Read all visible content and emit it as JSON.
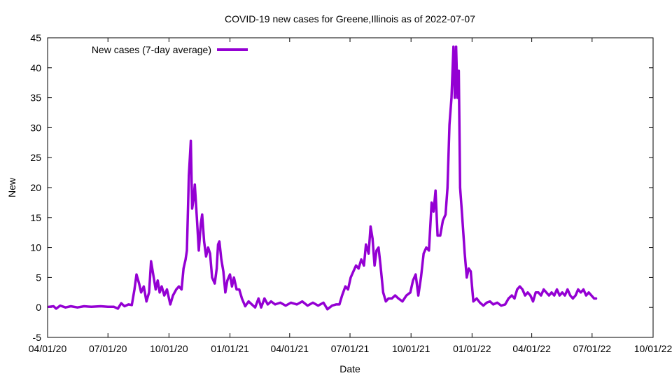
{
  "chart_data": {
    "type": "line",
    "title": "COVID-19 new cases for Greene,Illinois as of 2022-07-07",
    "xlabel": "Date",
    "ylabel": "New",
    "x_start": "2020-04-01",
    "x_end": "2022-10-01",
    "ylim": [
      -5,
      45
    ],
    "yticks": [
      -5,
      0,
      5,
      10,
      15,
      20,
      25,
      30,
      35,
      40,
      45
    ],
    "xticks": [
      {
        "date": "2020-04-01",
        "label": "04/01/20"
      },
      {
        "date": "2020-07-01",
        "label": "07/01/20"
      },
      {
        "date": "2020-10-01",
        "label": "10/01/20"
      },
      {
        "date": "2021-01-01",
        "label": "01/01/21"
      },
      {
        "date": "2021-04-01",
        "label": "04/01/21"
      },
      {
        "date": "2021-07-01",
        "label": "07/01/21"
      },
      {
        "date": "2021-10-01",
        "label": "10/01/21"
      },
      {
        "date": "2022-01-01",
        "label": "01/01/22"
      },
      {
        "date": "2022-04-01",
        "label": "04/01/22"
      },
      {
        "date": "2022-07-01",
        "label": "07/01/22"
      },
      {
        "date": "2022-10-01",
        "label": "10/01/22"
      }
    ],
    "grid": false,
    "legend_position": "top-left",
    "series": [
      {
        "name": "New cases (7-day average)",
        "color": "#9400d3",
        "points": [
          [
            "2020-04-03",
            0.1
          ],
          [
            "2020-04-10",
            0.2
          ],
          [
            "2020-04-14",
            -0.2
          ],
          [
            "2020-04-20",
            0.3
          ],
          [
            "2020-04-28",
            0.0
          ],
          [
            "2020-05-06",
            0.2
          ],
          [
            "2020-05-16",
            0.0
          ],
          [
            "2020-05-26",
            0.2
          ],
          [
            "2020-06-06",
            0.1
          ],
          [
            "2020-06-20",
            0.2
          ],
          [
            "2020-07-01",
            0.1
          ],
          [
            "2020-07-10",
            0.1
          ],
          [
            "2020-07-16",
            -0.2
          ],
          [
            "2020-07-21",
            0.7
          ],
          [
            "2020-07-26",
            0.2
          ],
          [
            "2020-08-01",
            0.5
          ],
          [
            "2020-08-06",
            0.4
          ],
          [
            "2020-08-10",
            3.0
          ],
          [
            "2020-08-13",
            5.5
          ],
          [
            "2020-08-17",
            4.0
          ],
          [
            "2020-08-20",
            2.5
          ],
          [
            "2020-08-24",
            3.5
          ],
          [
            "2020-08-28",
            1.0
          ],
          [
            "2020-09-01",
            2.5
          ],
          [
            "2020-09-04",
            7.7
          ],
          [
            "2020-09-08",
            5.0
          ],
          [
            "2020-09-11",
            3.0
          ],
          [
            "2020-09-14",
            4.5
          ],
          [
            "2020-09-17",
            2.5
          ],
          [
            "2020-09-20",
            3.5
          ],
          [
            "2020-09-24",
            2.0
          ],
          [
            "2020-09-28",
            3.0
          ],
          [
            "2020-10-03",
            0.5
          ],
          [
            "2020-10-07",
            2.0
          ],
          [
            "2020-10-12",
            3.0
          ],
          [
            "2020-10-16",
            3.5
          ],
          [
            "2020-10-20",
            3.0
          ],
          [
            "2020-10-23",
            6.5
          ],
          [
            "2020-10-26",
            8.0
          ],
          [
            "2020-10-28",
            9.5
          ],
          [
            "2020-10-31",
            22.0
          ],
          [
            "2020-11-03",
            27.8
          ],
          [
            "2020-11-05",
            16.5
          ],
          [
            "2020-11-07",
            18.0
          ],
          [
            "2020-11-09",
            20.5
          ],
          [
            "2020-11-12",
            15.0
          ],
          [
            "2020-11-15",
            9.5
          ],
          [
            "2020-11-18",
            14.0
          ],
          [
            "2020-11-20",
            15.5
          ],
          [
            "2020-11-23",
            11.0
          ],
          [
            "2020-11-26",
            8.5
          ],
          [
            "2020-11-29",
            10.0
          ],
          [
            "2020-12-02",
            9.0
          ],
          [
            "2020-12-05",
            5.0
          ],
          [
            "2020-12-09",
            4.0
          ],
          [
            "2020-12-12",
            6.5
          ],
          [
            "2020-12-14",
            10.5
          ],
          [
            "2020-12-16",
            11.0
          ],
          [
            "2020-12-19",
            8.0
          ],
          [
            "2020-12-22",
            6.0
          ],
          [
            "2020-12-25",
            2.5
          ],
          [
            "2020-12-28",
            4.5
          ],
          [
            "2021-01-01",
            5.5
          ],
          [
            "2021-01-04",
            3.5
          ],
          [
            "2021-01-07",
            5.0
          ],
          [
            "2021-01-11",
            3.0
          ],
          [
            "2021-01-15",
            3.0
          ],
          [
            "2021-01-19",
            1.5
          ],
          [
            "2021-01-24",
            0.2
          ],
          [
            "2021-01-29",
            1.0
          ],
          [
            "2021-02-03",
            0.5
          ],
          [
            "2021-02-08",
            0.0
          ],
          [
            "2021-02-13",
            1.5
          ],
          [
            "2021-02-17",
            0.0
          ],
          [
            "2021-02-22",
            1.5
          ],
          [
            "2021-02-27",
            0.5
          ],
          [
            "2021-03-04",
            1.0
          ],
          [
            "2021-03-10",
            0.5
          ],
          [
            "2021-03-18",
            0.8
          ],
          [
            "2021-03-26",
            0.3
          ],
          [
            "2021-04-03",
            0.8
          ],
          [
            "2021-04-12",
            0.5
          ],
          [
            "2021-04-20",
            1.0
          ],
          [
            "2021-04-28",
            0.3
          ],
          [
            "2021-05-06",
            0.8
          ],
          [
            "2021-05-14",
            0.3
          ],
          [
            "2021-05-22",
            0.8
          ],
          [
            "2021-05-28",
            -0.3
          ],
          [
            "2021-06-04",
            0.3
          ],
          [
            "2021-06-10",
            0.5
          ],
          [
            "2021-06-15",
            0.5
          ],
          [
            "2021-06-19",
            2.0
          ],
          [
            "2021-06-24",
            3.5
          ],
          [
            "2021-06-28",
            3.0
          ],
          [
            "2021-07-02",
            5.0
          ],
          [
            "2021-07-06",
            6.0
          ],
          [
            "2021-07-10",
            7.0
          ],
          [
            "2021-07-14",
            6.5
          ],
          [
            "2021-07-18",
            8.0
          ],
          [
            "2021-07-22",
            7.0
          ],
          [
            "2021-07-25",
            10.5
          ],
          [
            "2021-07-29",
            9.0
          ],
          [
            "2021-08-01",
            13.5
          ],
          [
            "2021-08-04",
            11.5
          ],
          [
            "2021-08-07",
            7.0
          ],
          [
            "2021-08-10",
            9.5
          ],
          [
            "2021-08-13",
            10.0
          ],
          [
            "2021-08-16",
            7.0
          ],
          [
            "2021-08-20",
            2.5
          ],
          [
            "2021-08-24",
            1.0
          ],
          [
            "2021-08-28",
            1.5
          ],
          [
            "2021-09-02",
            1.5
          ],
          [
            "2021-09-07",
            2.0
          ],
          [
            "2021-09-12",
            1.5
          ],
          [
            "2021-09-18",
            1.0
          ],
          [
            "2021-09-24",
            2.0
          ],
          [
            "2021-09-30",
            2.5
          ],
          [
            "2021-10-04",
            4.5
          ],
          [
            "2021-10-08",
            5.5
          ],
          [
            "2021-10-12",
            2.0
          ],
          [
            "2021-10-16",
            5.0
          ],
          [
            "2021-10-20",
            9.0
          ],
          [
            "2021-10-24",
            10.0
          ],
          [
            "2021-10-28",
            9.5
          ],
          [
            "2021-11-01",
            17.5
          ],
          [
            "2021-11-04",
            16.0
          ],
          [
            "2021-11-07",
            19.5
          ],
          [
            "2021-11-10",
            12.0
          ],
          [
            "2021-11-14",
            12.0
          ],
          [
            "2021-11-18",
            14.5
          ],
          [
            "2021-11-22",
            15.5
          ],
          [
            "2021-11-25",
            20.0
          ],
          [
            "2021-11-28",
            30.5
          ],
          [
            "2021-12-01",
            35.0
          ],
          [
            "2021-12-04",
            43.5
          ],
          [
            "2021-12-06",
            35.0
          ],
          [
            "2021-12-08",
            43.5
          ],
          [
            "2021-12-10",
            35.0
          ],
          [
            "2021-12-12",
            39.5
          ],
          [
            "2021-12-14",
            20.0
          ],
          [
            "2021-12-17",
            15.5
          ],
          [
            "2021-12-21",
            9.0
          ],
          [
            "2021-12-24",
            5.0
          ],
          [
            "2021-12-27",
            6.5
          ],
          [
            "2021-12-30",
            6.0
          ],
          [
            "2022-01-03",
            1.0
          ],
          [
            "2022-01-08",
            1.5
          ],
          [
            "2022-01-13",
            0.8
          ],
          [
            "2022-01-18",
            0.3
          ],
          [
            "2022-01-23",
            0.8
          ],
          [
            "2022-01-28",
            1.0
          ],
          [
            "2022-02-02",
            0.5
          ],
          [
            "2022-02-08",
            0.8
          ],
          [
            "2022-02-14",
            0.3
          ],
          [
            "2022-02-20",
            0.5
          ],
          [
            "2022-02-25",
            1.5
          ],
          [
            "2022-03-02",
            2.0
          ],
          [
            "2022-03-06",
            1.5
          ],
          [
            "2022-03-10",
            3.0
          ],
          [
            "2022-03-14",
            3.5
          ],
          [
            "2022-03-18",
            3.0
          ],
          [
            "2022-03-22",
            2.0
          ],
          [
            "2022-03-26",
            2.5
          ],
          [
            "2022-03-30",
            2.0
          ],
          [
            "2022-04-03",
            1.0
          ],
          [
            "2022-04-07",
            2.5
          ],
          [
            "2022-04-11",
            2.5
          ],
          [
            "2022-04-15",
            2.0
          ],
          [
            "2022-04-19",
            3.0
          ],
          [
            "2022-04-23",
            2.5
          ],
          [
            "2022-04-27",
            2.0
          ],
          [
            "2022-05-01",
            2.5
          ],
          [
            "2022-05-05",
            2.0
          ],
          [
            "2022-05-09",
            3.0
          ],
          [
            "2022-05-13",
            2.0
          ],
          [
            "2022-05-17",
            2.5
          ],
          [
            "2022-05-21",
            2.0
          ],
          [
            "2022-05-25",
            3.0
          ],
          [
            "2022-05-29",
            2.0
          ],
          [
            "2022-06-02",
            1.5
          ],
          [
            "2022-06-06",
            2.0
          ],
          [
            "2022-06-10",
            3.0
          ],
          [
            "2022-06-14",
            2.5
          ],
          [
            "2022-06-18",
            3.0
          ],
          [
            "2022-06-22",
            2.0
          ],
          [
            "2022-06-26",
            2.5
          ],
          [
            "2022-06-30",
            2.0
          ],
          [
            "2022-07-04",
            1.5
          ],
          [
            "2022-07-07",
            1.5
          ]
        ]
      }
    ]
  }
}
